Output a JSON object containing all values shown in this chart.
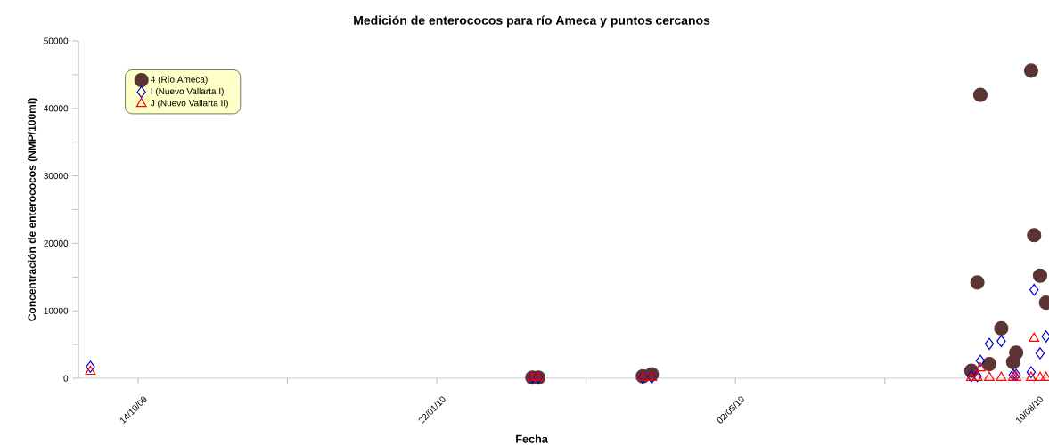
{
  "chart_data": {
    "type": "scatter",
    "title": "Medición de enterococos para río Ameca y puntos cercanos",
    "xlabel": "Fecha",
    "ylabel": "Concentración de enterococos (NMP/100ml)",
    "xlim": [
      "2009-09-24",
      "2010-08-15"
    ],
    "ylim": [
      0,
      50000
    ],
    "xticks": [
      {
        "value": "2009-10-14",
        "label": "14/10/09"
      },
      {
        "value": "2009-12-03",
        "label": null
      },
      {
        "value": "2010-01-22",
        "label": "22/01/10"
      },
      {
        "value": "2010-03-13",
        "label": null
      },
      {
        "value": "2010-05-02",
        "label": "02/05/10"
      },
      {
        "value": "2010-06-21",
        "label": null
      },
      {
        "value": "2010-08-10",
        "label": "10/08/10"
      }
    ],
    "yticks": [
      0,
      {
        "value": 5000,
        "label": null
      },
      10000,
      {
        "value": 15000,
        "label": null
      },
      20000,
      {
        "value": 25000,
        "label": null
      },
      30000,
      {
        "value": 35000,
        "label": null
      },
      40000,
      {
        "value": 45000,
        "label": null
      },
      50000
    ],
    "legend": "top left",
    "grid": false,
    "series": [
      {
        "name": "4 (Río Ameca)",
        "color": "#5c3434",
        "marker": "circle",
        "x": [
          "2010-02-23",
          "2010-02-25",
          "2010-04-01",
          "2010-04-04",
          "2010-07-20",
          "2010-07-22",
          "2010-07-23",
          "2010-07-26",
          "2010-07-30",
          "2010-08-03",
          "2010-08-04",
          "2010-08-09",
          "2010-08-10",
          "2010-08-12",
          "2010-08-14"
        ],
        "values": [
          100,
          100,
          300,
          600,
          1100,
          14200,
          42000,
          2100,
          7400,
          2400,
          3800,
          45600,
          21200,
          15200,
          11200
        ]
      },
      {
        "name": "I (Nuevo Vallarta I)",
        "color": "#0000cc",
        "marker": "diamond",
        "x": [
          "2009-09-28",
          "2010-02-23",
          "2010-02-25",
          "2010-04-01",
          "2010-04-04",
          "2010-07-20",
          "2010-07-22",
          "2010-07-23",
          "2010-07-26",
          "2010-07-30",
          "2010-08-03",
          "2010-08-04",
          "2010-08-09",
          "2010-08-10",
          "2010-08-12",
          "2010-08-14"
        ],
        "values": [
          1700,
          100,
          100,
          100,
          100,
          300,
          300,
          2600,
          5100,
          5500,
          500,
          500,
          900,
          13100,
          3700,
          6200
        ]
      },
      {
        "name": "J (Nuevo Vallarta II)",
        "color": "#ff0000",
        "marker": "triangle",
        "x": [
          "2009-09-28",
          "2010-02-23",
          "2010-02-25",
          "2010-04-01",
          "2010-04-04",
          "2010-07-20",
          "2010-07-22",
          "2010-07-23",
          "2010-07-26",
          "2010-07-30",
          "2010-08-03",
          "2010-08-04",
          "2010-08-09",
          "2010-08-10",
          "2010-08-12",
          "2010-08-14"
        ],
        "values": [
          1000,
          100,
          100,
          100,
          100,
          100,
          100,
          1500,
          100,
          100,
          100,
          100,
          100,
          5900,
          100,
          100
        ]
      }
    ]
  }
}
